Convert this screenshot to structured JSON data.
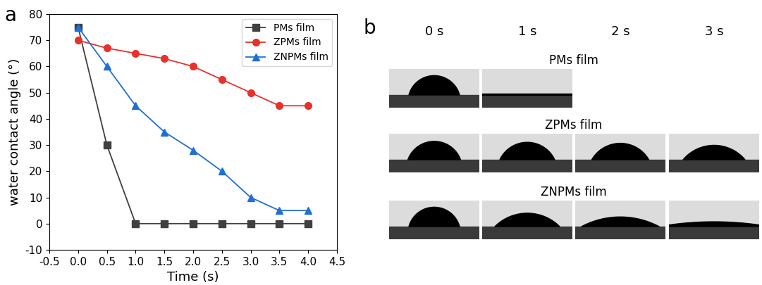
{
  "panel_labels": [
    "a",
    "b"
  ],
  "chart_data": {
    "type": "line",
    "x_label": "Time (s)",
    "y_label": "water contact angle (°)",
    "x": [
      0.0,
      0.5,
      1.0,
      1.5,
      2.0,
      2.5,
      3.0,
      3.5,
      4.0
    ],
    "xlim": [
      -0.5,
      4.5
    ],
    "xticks": [
      -0.5,
      0.0,
      0.5,
      1.0,
      1.5,
      2.0,
      2.5,
      3.0,
      3.5,
      4.0,
      4.5
    ],
    "ylim": [
      -10,
      80
    ],
    "yticks": [
      -10,
      0,
      10,
      20,
      30,
      40,
      50,
      60,
      70,
      80
    ],
    "legend": "upper right",
    "series": [
      {
        "name": "PMs film",
        "color": "#404040",
        "marker": "square",
        "line_style": "solid",
        "values": [
          75,
          30,
          0,
          0,
          0,
          0,
          0,
          0,
          0
        ]
      },
      {
        "name": "ZPMs film",
        "color": "#e8312a",
        "marker": "circle",
        "line_style": "solid",
        "values": [
          70,
          67,
          65,
          63,
          60,
          55,
          50,
          45,
          45
        ]
      },
      {
        "name": "ZNPMs film",
        "color": "#1f6fd6",
        "marker": "triangle",
        "line_style": "solid",
        "values": [
          75,
          60,
          45,
          35,
          28,
          20,
          10,
          5,
          5
        ]
      }
    ]
  },
  "photos": {
    "columns": [
      {
        "value": 0,
        "label": "0 s"
      },
      {
        "value": 1,
        "label": "1 s"
      },
      {
        "value": 2,
        "label": "2 s"
      },
      {
        "value": 3,
        "label": "3 s"
      }
    ],
    "rows": [
      {
        "label": "PMs film",
        "times": [
          0,
          1
        ]
      },
      {
        "label": "ZPMs film",
        "times": [
          0,
          1,
          2,
          3
        ]
      },
      {
        "label": "ZNPMs film",
        "times": [
          0,
          1,
          2,
          3
        ]
      }
    ]
  }
}
